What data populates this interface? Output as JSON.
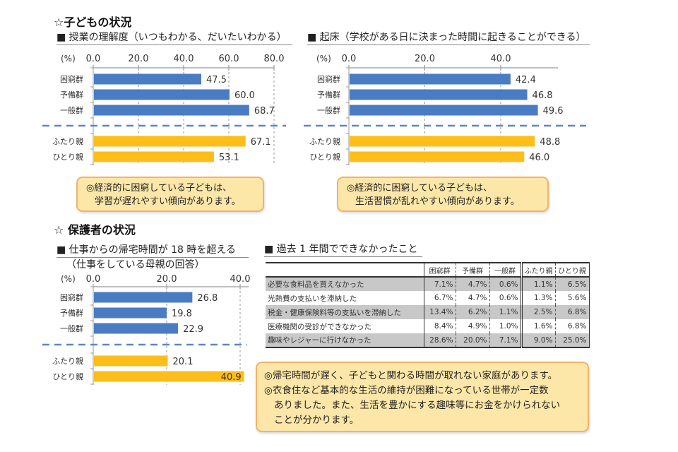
{
  "sections": {
    "children_title": "☆子どもの状況",
    "guardians_title": "☆ 保護者の状況"
  },
  "colors": {
    "blue_bar": "#4a7cc4",
    "orange_bar": "#fdbe1a",
    "divider": "#5b86c8",
    "note_bg": "#fde7a8",
    "note_border": "#f2b26a"
  },
  "chart_data": [
    {
      "type": "bar",
      "orientation": "horizontal",
      "title": "■ 授業の理解度（いつもわかる、だいたいわかる）",
      "unit_label": "(%)",
      "categories": [
        "困窮群",
        "予備群",
        "一般群",
        "ふたり親",
        "ひとり親"
      ],
      "values": [
        47.5,
        60.0,
        68.7,
        67.1,
        53.1
      ],
      "value_labels": [
        "47.5",
        "60.0",
        "68.7",
        "67.1",
        "53.1"
      ],
      "bar_colors": [
        "blue",
        "blue",
        "blue",
        "orange",
        "orange"
      ],
      "ticks": [
        0,
        20,
        40,
        60,
        80
      ],
      "tick_labels": [
        "0.0",
        "20.0",
        "40.0",
        "60.0",
        "80.0"
      ],
      "xlim": [
        0,
        80
      ],
      "grid": "vertical-dashed"
    },
    {
      "type": "bar",
      "orientation": "horizontal",
      "title": "■ 起床（学校がある日に決まった時間に起きることができる）",
      "unit_label": "(%)",
      "categories": [
        "困窮群",
        "予備群",
        "一般群",
        "ふたり親",
        "ひとり親"
      ],
      "values": [
        42.4,
        46.8,
        49.6,
        48.8,
        46.0
      ],
      "value_labels": [
        "42.4",
        "46.8",
        "49.6",
        "48.8",
        "46.0"
      ],
      "bar_colors": [
        "blue",
        "blue",
        "blue",
        "orange",
        "orange"
      ],
      "ticks": [
        0,
        20,
        40
      ],
      "tick_labels": [
        "0.0",
        "20.0",
        "40.0"
      ],
      "xlim": [
        0,
        55
      ],
      "grid": "vertical-dashed"
    },
    {
      "type": "bar",
      "orientation": "horizontal",
      "title": "■ 仕事からの帰宅時間が 18 時を超える",
      "subtitle": "（仕事をしている母親の回答）",
      "unit_label": "(%)",
      "categories": [
        "困窮群",
        "予備群",
        "一般群",
        "ふたり親",
        "ひとり親"
      ],
      "values": [
        26.8,
        19.8,
        22.9,
        20.1,
        40.9
      ],
      "value_labels": [
        "26.8",
        "19.8",
        "22.9",
        "20.1",
        "40.9"
      ],
      "bar_colors": [
        "blue",
        "blue",
        "blue",
        "orange",
        "orange"
      ],
      "ticks": [
        0,
        20,
        40
      ],
      "tick_labels": [
        "0.0",
        "20.0",
        "40.0"
      ],
      "xlim": [
        0,
        42
      ],
      "grid": "vertical-dashed"
    },
    {
      "type": "table",
      "title": "■ 過去 1 年間でできなかったこと",
      "columns": [
        "困窮群",
        "予備群",
        "一般群",
        "ふたり親",
        "ひとり親"
      ],
      "rows": [
        {
          "label": "必要な食料品を買えなかった",
          "values": [
            "7.1%",
            "4.7%",
            "0.6%",
            "1.1%",
            "6.5%"
          ]
        },
        {
          "label": "光熱費の支払いを滞納した",
          "values": [
            "6.7%",
            "4.7%",
            "0.6%",
            "1.3%",
            "5.6%"
          ]
        },
        {
          "label": "税金・健康保険料等の支払いを滞納した",
          "values": [
            "13.4%",
            "6.2%",
            "1.1%",
            "2.5%",
            "6.8%"
          ]
        },
        {
          "label": "医療機関の受診ができなかった",
          "values": [
            "8.4%",
            "4.9%",
            "1.0%",
            "1.6%",
            "6.8%"
          ]
        },
        {
          "label": "趣味やレジャーに行けなかった",
          "values": [
            "28.6%",
            "20.0%",
            "7.1%",
            "9.0%",
            "25.0%"
          ]
        }
      ]
    }
  ],
  "notes": {
    "note1": [
      "◎経済的に困窮している子どもは、",
      "学習が遅れやすい傾向があります。"
    ],
    "note2": [
      "◎経済的に困窮している子どもは、",
      "生活習慣が乱れやすい傾向があります。"
    ],
    "note3": [
      "◎帰宅時間が遅く、子どもと関わる時間が取れない家庭があります。",
      "◎衣食住など基本的な生活の維持が困難になっている世帯が一定数",
      "ありました。また、生活を豊かにする趣味等にお金をかけられない",
      "ことが分かります。"
    ]
  }
}
